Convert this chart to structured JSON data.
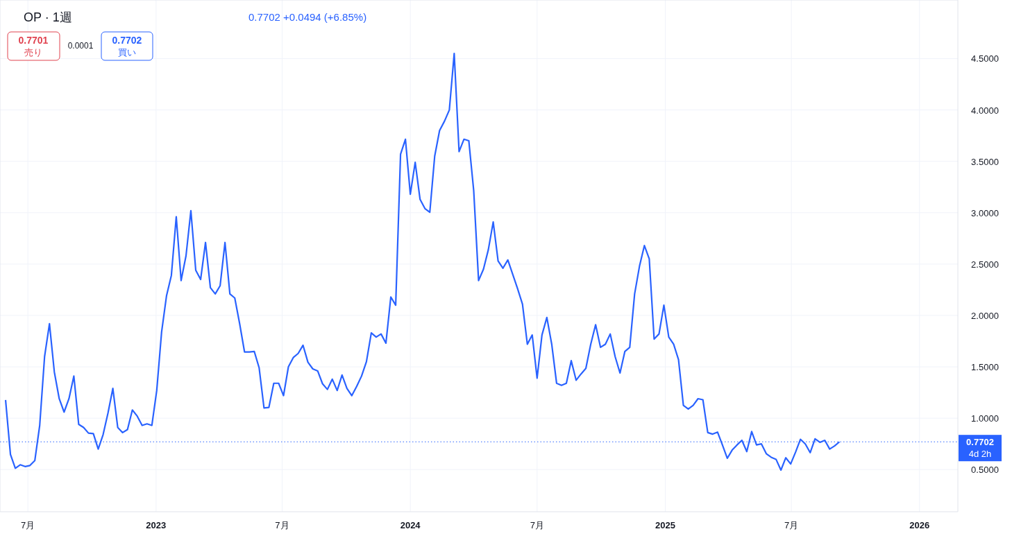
{
  "chart_data": {
    "type": "line",
    "title": "OP · 1週",
    "subtitle": "0.7702 +0.0494 (+6.85%)",
    "annotations": [
      "0.7701",
      "売り",
      "0.0001",
      "0.7702",
      "買い",
      "4d 2h"
    ],
    "x": [
      "2022-05-30",
      "2022-06-06",
      "2022-06-13",
      "2022-06-20",
      "2022-06-27",
      "2022-07-04",
      "2022-07-11",
      "2022-07-18",
      "2022-07-25",
      "2022-08-01",
      "2022-08-08",
      "2022-08-15",
      "2022-08-22",
      "2022-08-29",
      "2022-09-05",
      "2022-09-12",
      "2022-09-19",
      "2022-09-26",
      "2022-10-03",
      "2022-10-10",
      "2022-10-17",
      "2022-10-24",
      "2022-10-31",
      "2022-11-07",
      "2022-11-14",
      "2022-11-21",
      "2022-11-28",
      "2022-12-05",
      "2022-12-12",
      "2022-12-19",
      "2022-12-26",
      "2023-01-02",
      "2023-01-09",
      "2023-01-16",
      "2023-01-23",
      "2023-01-30",
      "2023-02-06",
      "2023-02-13",
      "2023-02-20",
      "2023-02-27",
      "2023-03-06",
      "2023-03-13",
      "2023-03-20",
      "2023-03-27",
      "2023-04-03",
      "2023-04-10",
      "2023-04-17",
      "2023-04-24",
      "2023-05-01",
      "2023-05-08",
      "2023-05-15",
      "2023-05-22",
      "2023-05-29",
      "2023-06-05",
      "2023-06-12",
      "2023-06-19",
      "2023-06-26",
      "2023-07-03",
      "2023-07-10",
      "2023-07-17",
      "2023-07-24",
      "2023-07-31",
      "2023-08-07",
      "2023-08-14",
      "2023-08-21",
      "2023-08-28",
      "2023-09-04",
      "2023-09-11",
      "2023-09-18",
      "2023-09-25",
      "2023-10-02",
      "2023-10-09",
      "2023-10-16",
      "2023-10-23",
      "2023-10-30",
      "2023-11-06",
      "2023-11-13",
      "2023-11-20",
      "2023-11-27",
      "2023-12-04",
      "2023-12-11",
      "2023-12-18",
      "2023-12-25",
      "2024-01-01",
      "2024-01-08",
      "2024-01-15",
      "2024-01-22",
      "2024-01-29",
      "2024-02-05",
      "2024-02-12",
      "2024-02-19",
      "2024-02-26",
      "2024-03-04",
      "2024-03-11",
      "2024-03-18",
      "2024-03-25",
      "2024-04-01",
      "2024-04-08",
      "2024-04-15",
      "2024-04-22",
      "2024-04-29",
      "2024-05-06",
      "2024-05-13",
      "2024-05-20",
      "2024-05-27",
      "2024-06-03",
      "2024-06-10",
      "2024-06-17",
      "2024-06-24",
      "2024-07-01",
      "2024-07-08",
      "2024-07-15",
      "2024-07-22",
      "2024-07-29",
      "2024-08-05",
      "2024-08-12",
      "2024-08-19",
      "2024-08-26",
      "2024-09-02",
      "2024-09-09",
      "2024-09-16",
      "2024-09-23",
      "2024-09-30",
      "2024-10-07",
      "2024-10-14",
      "2024-10-21",
      "2024-10-28",
      "2024-11-04",
      "2024-11-11",
      "2024-11-18",
      "2024-11-25",
      "2024-12-02",
      "2024-12-09",
      "2024-12-16",
      "2024-12-23",
      "2024-12-30",
      "2025-01-06",
      "2025-01-13",
      "2025-01-20",
      "2025-01-27",
      "2025-02-03",
      "2025-02-10",
      "2025-02-17",
      "2025-02-24",
      "2025-03-03",
      "2025-03-10",
      "2025-03-17",
      "2025-03-24",
      "2025-03-31",
      "2025-04-07",
      "2025-04-14",
      "2025-04-21",
      "2025-04-28",
      "2025-05-05",
      "2025-05-12",
      "2025-05-19",
      "2025-05-26",
      "2025-06-02",
      "2025-06-09",
      "2025-06-16",
      "2025-06-23",
      "2025-06-30",
      "2025-07-07",
      "2025-07-14",
      "2025-07-21",
      "2025-07-28",
      "2025-08-04",
      "2025-08-11",
      "2025-08-18",
      "2025-08-25",
      "2025-09-01",
      "2025-09-08"
    ],
    "series": [
      {
        "color": "#2962ff",
        "values": [
          1.177,
          0.648,
          0.513,
          0.547,
          0.53,
          0.54,
          0.588,
          0.93,
          1.6,
          1.92,
          1.45,
          1.19,
          1.06,
          1.19,
          1.41,
          0.94,
          0.91,
          0.855,
          0.85,
          0.7,
          0.84,
          1.05,
          1.29,
          0.91,
          0.86,
          0.89,
          1.08,
          1.02,
          0.93,
          0.945,
          0.93,
          1.27,
          1.84,
          2.19,
          2.39,
          2.96,
          2.34,
          2.58,
          3.02,
          2.44,
          2.35,
          2.71,
          2.27,
          2.21,
          2.29,
          2.71,
          2.21,
          2.17,
          1.92,
          1.645,
          1.645,
          1.65,
          1.49,
          1.1,
          1.105,
          1.34,
          1.34,
          1.22,
          1.5,
          1.59,
          1.63,
          1.71,
          1.545,
          1.48,
          1.46,
          1.335,
          1.28,
          1.38,
          1.27,
          1.42,
          1.29,
          1.22,
          1.31,
          1.41,
          1.55,
          1.83,
          1.79,
          1.82,
          1.73,
          2.18,
          2.1,
          3.57,
          3.715,
          3.18,
          3.49,
          3.13,
          3.04,
          3.005,
          3.55,
          3.8,
          3.89,
          4.0,
          4.55,
          3.595,
          3.715,
          3.7,
          3.215,
          2.34,
          2.45,
          2.64,
          2.91,
          2.53,
          2.46,
          2.54,
          2.4,
          2.26,
          2.11,
          1.72,
          1.81,
          1.39,
          1.81,
          1.98,
          1.72,
          1.34,
          1.32,
          1.34,
          1.56,
          1.37,
          1.43,
          1.485,
          1.72,
          1.91,
          1.69,
          1.72,
          1.82,
          1.6,
          1.44,
          1.65,
          1.69,
          2.21,
          2.48,
          2.68,
          2.55,
          1.77,
          1.82,
          2.1,
          1.79,
          1.72,
          1.57,
          1.125,
          1.09,
          1.125,
          1.19,
          1.18,
          0.86,
          0.845,
          0.865,
          0.74,
          0.61,
          0.69,
          0.74,
          0.785,
          0.675,
          0.87,
          0.74,
          0.75,
          0.655,
          0.62,
          0.6,
          0.495,
          0.615,
          0.555,
          0.67,
          0.795,
          0.75,
          0.665,
          0.8,
          0.765,
          0.785,
          0.7,
          0.73,
          0.77
        ]
      }
    ],
    "xlim": [
      "2022-05-22",
      "2026-02-25"
    ],
    "xticks": [
      {
        "value": "2022-07-01",
        "label": "7月"
      },
      {
        "value": "2023-01-01",
        "label": "2023"
      },
      {
        "value": "2023-07-01",
        "label": "7月"
      },
      {
        "value": "2024-01-01",
        "label": "2024"
      },
      {
        "value": "2024-07-01",
        "label": "7月"
      },
      {
        "value": "2025-01-01",
        "label": "2025"
      },
      {
        "value": "2025-07-01",
        "label": "7月"
      },
      {
        "value": "2026-01-01",
        "label": "2026"
      }
    ],
    "ylim": [
      0.09,
      5.07
    ],
    "yticks": [
      {
        "value": 0.5,
        "label": "0.5000"
      },
      {
        "value": 1.0,
        "label": "1.0000"
      },
      {
        "value": 1.5,
        "label": "1.5000"
      },
      {
        "value": 2.0,
        "label": "2.0000"
      },
      {
        "value": 2.5,
        "label": "2.5000"
      },
      {
        "value": 3.0,
        "label": "3.0000"
      },
      {
        "value": 3.5,
        "label": "3.5000"
      },
      {
        "value": 4.0,
        "label": "4.0000"
      },
      {
        "value": 4.5,
        "label": "4.5000"
      }
    ],
    "ref_lines": [
      {
        "axis": "y",
        "value": 0.7702,
        "label": "0.7702",
        "color": "#2962ff",
        "line_style": "dotted"
      }
    ],
    "grid": true,
    "marker": "none",
    "line_style": "solid"
  }
}
